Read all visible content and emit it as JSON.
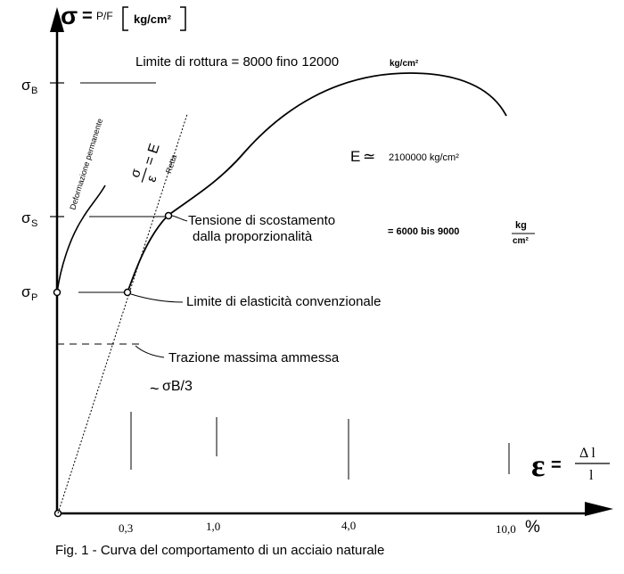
{
  "y_axis": {
    "symbol": "σ",
    "equals": "=",
    "fraction": "P/F",
    "unit": "kg/cm²"
  },
  "y_levels": {
    "sigma_B": {
      "base": "σ",
      "sub": "B"
    },
    "sigma_S": {
      "base": "σ",
      "sub": "S"
    },
    "sigma_P": {
      "base": "σ",
      "sub": "P"
    }
  },
  "x_axis": {
    "ticks": [
      "0,3",
      "1,0",
      "4,0",
      "10,0"
    ],
    "percent": "%",
    "symbol": "ε",
    "equals": "=",
    "numerator": "Δ l",
    "denominator": "l"
  },
  "labels": {
    "rupture": "Limite di rottura =  8000 fino 12000",
    "rupture_unit": "kg/cm²",
    "modulus_symbol": "E",
    "modulus_approx": "≃",
    "modulus_value": "2100000 kg/cm²",
    "permanent_deformation": "Deformazione permanente",
    "hooke_num": "σ",
    "hooke_den": "ε",
    "hooke_eq": "= E",
    "retta": "Retta",
    "deviation_line1": "Tensione di scostamento",
    "deviation_line2": "dalla proporzionalità",
    "deviation_value": "= 6000   bis   9000",
    "deviation_unit_num": "kg",
    "deviation_unit_den": "cm²",
    "elastic_limit": "Limite di elasticità convenzionale",
    "max_tension": "Trazione massima ammessa",
    "approx_tilde": "~",
    "sigma_b_third": "σB/3"
  },
  "caption": "Fig. 1 - Curva del comportamento di un acciaio naturale"
}
